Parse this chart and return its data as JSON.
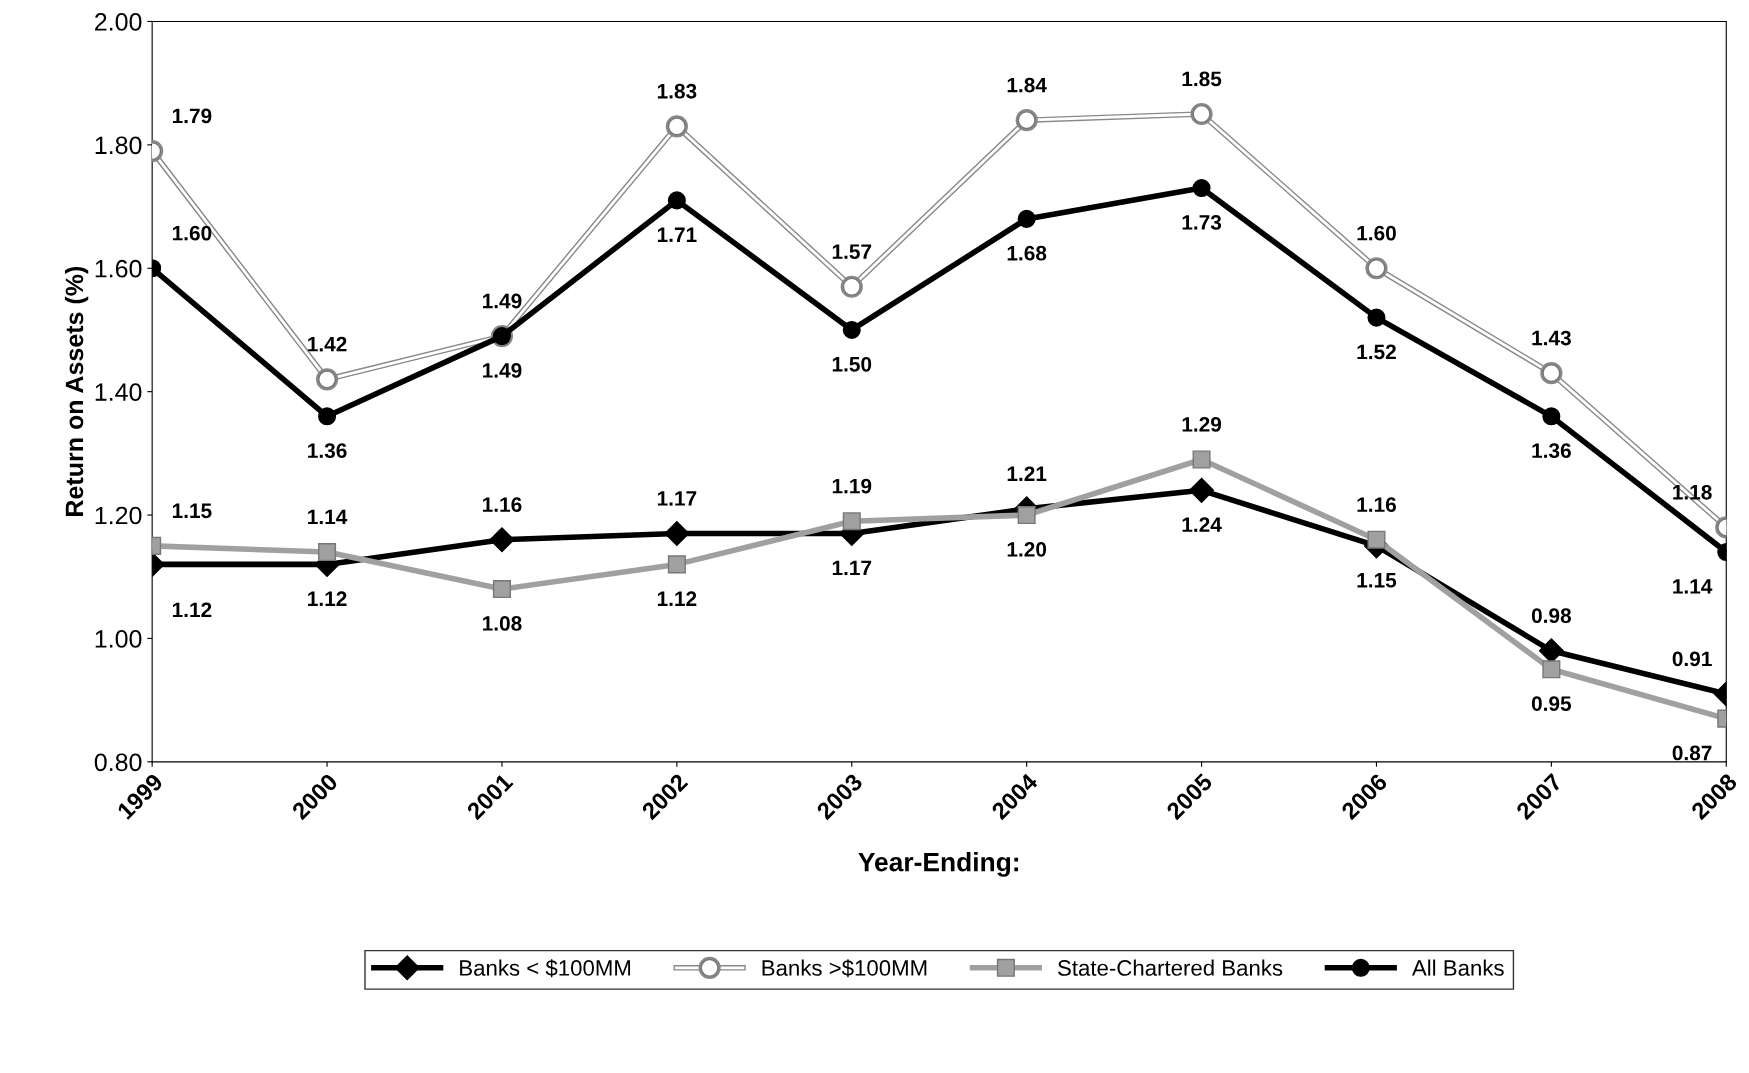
{
  "chart_data": {
    "type": "line",
    "xlabel": "Year-Ending:",
    "ylabel": "Return on Assets (%)",
    "categories": [
      "1999",
      "2000",
      "2001",
      "2002",
      "2003",
      "2004",
      "2005",
      "2006",
      "2007",
      "2008"
    ],
    "series": [
      {
        "name": "Banks < $100MM",
        "color": "#000000",
        "marker": "diamond",
        "values": [
          1.12,
          1.12,
          1.16,
          1.17,
          1.17,
          1.21,
          1.24,
          1.15,
          0.98,
          0.91
        ],
        "value_labels": [
          "1.12",
          "1.12",
          "1.16",
          "1.17",
          "1.17",
          "1.21",
          "1.24",
          "1.15",
          "0.98",
          "0.91"
        ]
      },
      {
        "name": "Banks >$100MM",
        "color": "#ffffff",
        "marker": "circle",
        "values": [
          1.79,
          1.42,
          1.49,
          1.83,
          1.57,
          1.84,
          1.85,
          1.6,
          1.43,
          1.18
        ],
        "value_labels": [
          "1.79",
          "1.42",
          "1.49",
          "1.83",
          "1.57",
          "1.84",
          "1.85",
          "1.60",
          "1.43",
          "1.18"
        ]
      },
      {
        "name": "State-Chartered Banks",
        "color": "#a0a0a0",
        "marker": "square",
        "values": [
          1.15,
          1.14,
          1.08,
          1.12,
          1.19,
          1.2,
          1.29,
          1.16,
          0.95,
          0.87
        ],
        "value_labels": [
          "1.15",
          "1.14",
          "1.08",
          "1.12",
          "1.19",
          "1.20",
          "1.29",
          "1.16",
          "0.95",
          "0.87"
        ]
      },
      {
        "name": "All Banks",
        "color": "#000000",
        "marker": "circle",
        "values": [
          1.6,
          1.36,
          1.49,
          1.71,
          1.5,
          1.68,
          1.73,
          1.52,
          1.36,
          1.14
        ],
        "value_labels": [
          "1.60",
          "1.36",
          "1.49",
          "1.71",
          "1.50",
          "1.68",
          "1.73",
          "1.52",
          "1.36",
          "1.14"
        ]
      }
    ],
    "ylim": [
      0.8,
      2.0
    ],
    "yticks": [
      {
        "value": 0.8,
        "label": "0.80"
      },
      {
        "value": 1.0,
        "label": "1.00"
      },
      {
        "value": 1.2,
        "label": "1.20"
      },
      {
        "value": 1.4,
        "label": "1.40"
      },
      {
        "value": 1.6,
        "label": "1.60"
      },
      {
        "value": 1.8,
        "label": "1.80"
      },
      {
        "value": 2.0,
        "label": "2.00"
      }
    ],
    "data_labels": true,
    "grid": false,
    "legend": "bottom",
    "line_style": "solid"
  }
}
